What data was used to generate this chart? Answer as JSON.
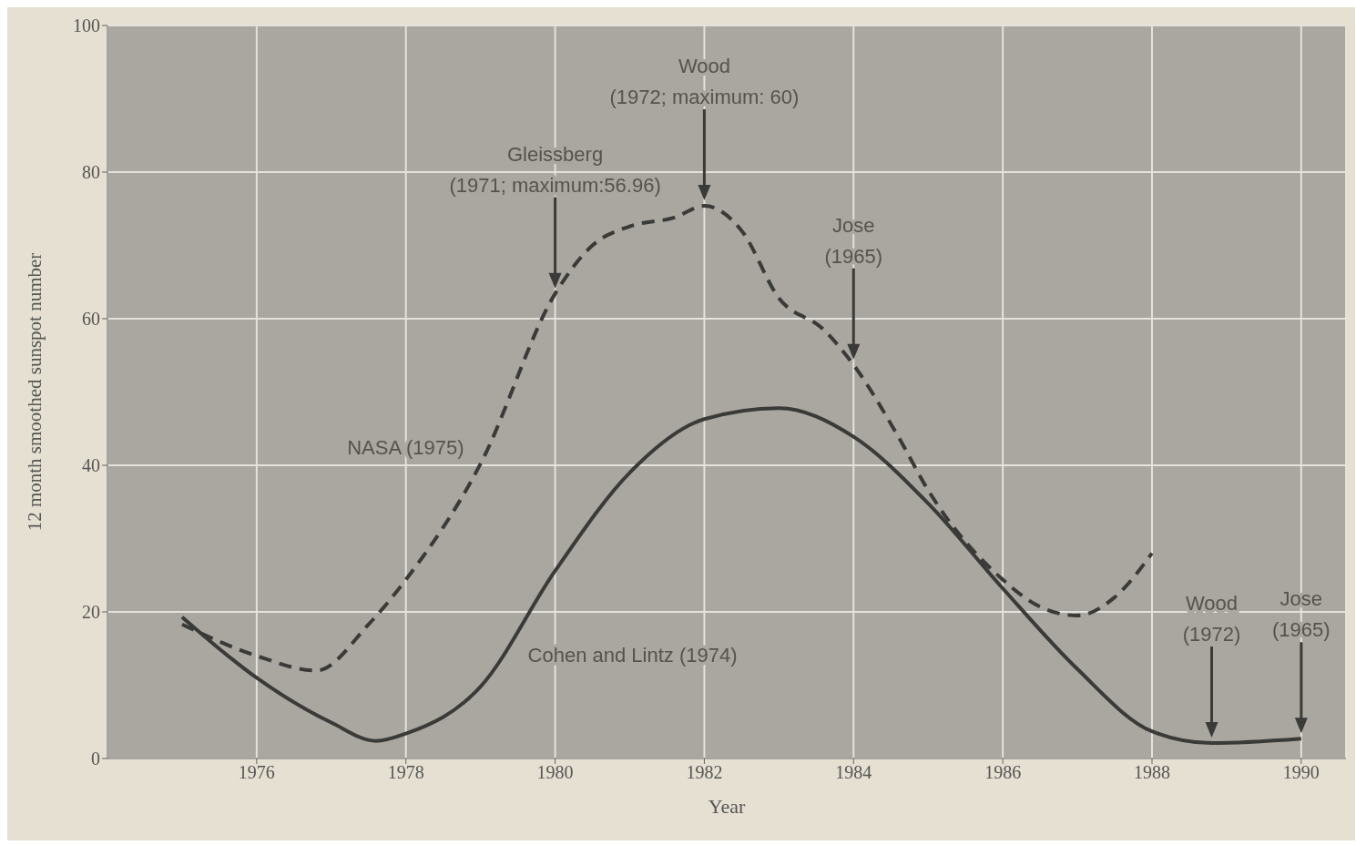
{
  "chart_data": {
    "type": "line",
    "xlabel": "Year",
    "ylabel": "12 month smoothed sunspot number",
    "xlim": [
      1974,
      1990.6
    ],
    "xticks": [
      1976,
      1978,
      1980,
      1982,
      1984,
      1986,
      1988,
      1990
    ],
    "ylim": [
      0,
      100
    ],
    "yticks": [
      0,
      20,
      40,
      60,
      80,
      100
    ],
    "grid": true,
    "line_style": "solid",
    "marker": "none",
    "series": [
      {
        "name": "NASA (1975)",
        "color": "#3a3a38",
        "line_style": "dashed",
        "x": [
          1975,
          1976,
          1976.8,
          1977.5,
          1978,
          1979,
          1980,
          1980.5,
          1981,
          1981.6,
          1982,
          1982.5,
          1983,
          1983.6,
          1984,
          1984.6,
          1985,
          1986,
          1986.5,
          1987,
          1987.5,
          1988
        ],
        "values": [
          18.3,
          14,
          12,
          18.3,
          24.4,
          40.2,
          63.4,
          70,
          72.6,
          73.8,
          75.4,
          72,
          62.8,
          58.5,
          53.7,
          43.9,
          36.6,
          24.4,
          20.7,
          19.5,
          22,
          28
        ]
      },
      {
        "name": "Cohen and Lintz (1974)",
        "color": "#3a3a38",
        "x": [
          1975,
          1976,
          1977,
          1977.6,
          1978,
          1979,
          1980,
          1981,
          1982,
          1983,
          1984,
          1985,
          1986,
          1987,
          1988,
          1988.8,
          1990
        ],
        "values": [
          19.3,
          11,
          4.9,
          2.4,
          3.4,
          9.8,
          25.6,
          39,
          46.3,
          47.8,
          43.9,
          34.8,
          23.2,
          12.2,
          3.7,
          2.1,
          2.7
        ]
      }
    ],
    "annotations": [
      "Gleissberg\n(1971; maximum:56.96)",
      "Wood\n(1972; maximum: 60)",
      "Jose\n(1965)",
      "Wood\n(1972)",
      "Jose\n(1965)"
    ]
  }
}
